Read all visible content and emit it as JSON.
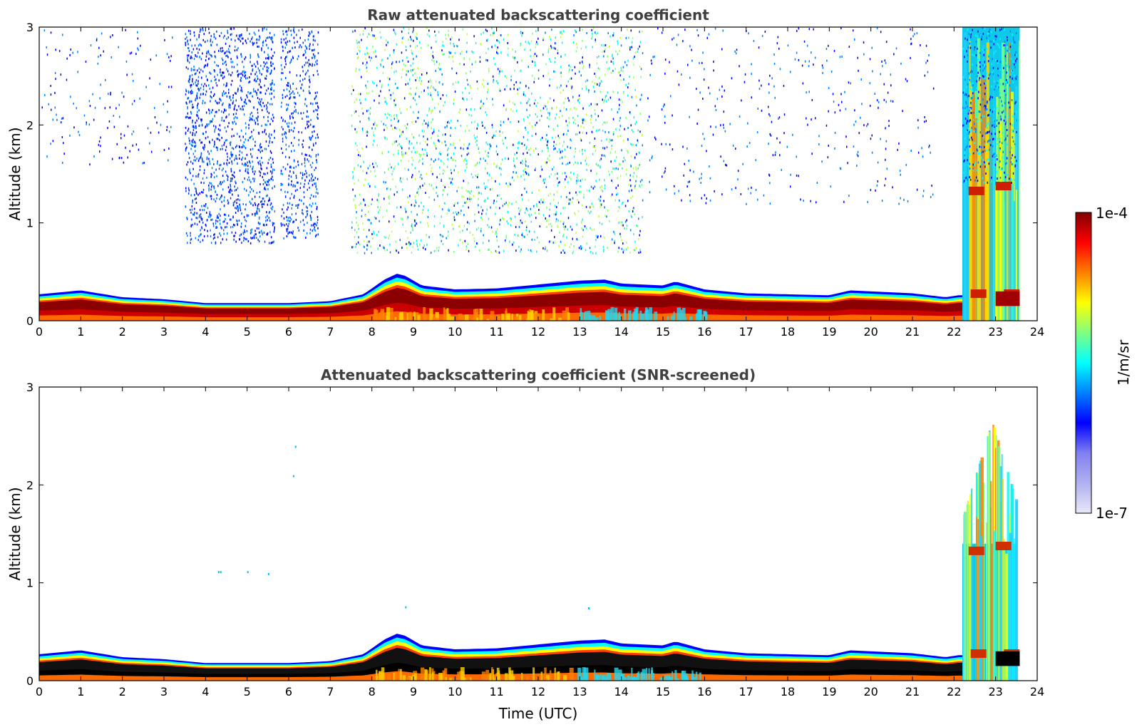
{
  "chart_data": [
    {
      "type": "heatmap",
      "title": "Raw attenuated backscattering coefficient",
      "xlabel": "",
      "ylabel": "Altitude (km)",
      "xlim": [
        0,
        24
      ],
      "ylim": [
        0,
        3
      ],
      "xticks": [
        "0",
        "1",
        "2",
        "3",
        "4",
        "5",
        "6",
        "7",
        "8",
        "9",
        "10",
        "11",
        "12",
        "13",
        "14",
        "15",
        "16",
        "17",
        "18",
        "19",
        "20",
        "21",
        "22",
        "23",
        "24"
      ],
      "yticks": [
        "0",
        "1",
        "2",
        "3"
      ],
      "features": [
        {
          "name": "aerosol layer top (km) vs time (UTC)",
          "x": [
            0,
            1,
            2,
            3,
            4,
            5,
            6,
            7,
            7.8,
            8.3,
            8.6,
            8.8,
            9.2,
            10,
            11,
            12,
            13,
            13.6,
            14,
            15,
            15.3,
            16,
            17,
            18,
            19,
            19.5,
            20,
            21,
            21.8,
            22.1
          ],
          "y": [
            0.27,
            0.31,
            0.24,
            0.22,
            0.18,
            0.18,
            0.18,
            0.2,
            0.27,
            0.42,
            0.48,
            0.46,
            0.36,
            0.32,
            0.33,
            0.37,
            0.41,
            0.42,
            0.38,
            0.36,
            0.4,
            0.32,
            0.28,
            0.27,
            0.26,
            0.31,
            0.3,
            0.28,
            0.24,
            0.26
          ]
        },
        {
          "name": "dense cloud",
          "x_range": [
            22.2,
            23.6
          ],
          "y_range": [
            0,
            3
          ]
        },
        {
          "name": "sparse noise",
          "x_range": [
            0,
            24
          ],
          "y_range": [
            0.7,
            3
          ]
        }
      ]
    },
    {
      "type": "heatmap",
      "title": "Attenuated backscattering coefficient (SNR-screened)",
      "xlabel": "Time (UTC)",
      "ylabel": "Altitude (km)",
      "xlim": [
        0,
        24
      ],
      "ylim": [
        0,
        3
      ],
      "xticks": [
        "0",
        "1",
        "2",
        "3",
        "4",
        "5",
        "6",
        "7",
        "8",
        "9",
        "10",
        "11",
        "12",
        "13",
        "14",
        "15",
        "16",
        "17",
        "18",
        "19",
        "20",
        "21",
        "22",
        "23",
        "24"
      ],
      "yticks": [
        "0",
        "1",
        "2",
        "3"
      ],
      "features": [
        {
          "name": "aerosol layer top (km) vs time (UTC)",
          "x": [
            0,
            1,
            2,
            3,
            4,
            5,
            6,
            7,
            7.8,
            8.3,
            8.6,
            8.8,
            9.2,
            10,
            11,
            12,
            13,
            13.6,
            14,
            15,
            15.3,
            16,
            17,
            18,
            19,
            19.5,
            20,
            21,
            21.8,
            22.1
          ],
          "y": [
            0.27,
            0.31,
            0.24,
            0.22,
            0.18,
            0.18,
            0.18,
            0.2,
            0.27,
            0.42,
            0.48,
            0.46,
            0.36,
            0.32,
            0.33,
            0.37,
            0.41,
            0.42,
            0.38,
            0.36,
            0.4,
            0.32,
            0.28,
            0.27,
            0.26,
            0.31,
            0.3,
            0.28,
            0.24,
            0.26
          ]
        },
        {
          "name": "cloud column",
          "x_range": [
            22.2,
            23.5
          ],
          "y_range": [
            0,
            2.65
          ]
        }
      ]
    }
  ],
  "colorbar": {
    "max_label": "1e-4",
    "min_label": "1e-7",
    "unit_label": "1/m/sr",
    "colors": [
      "#e8e8f8",
      "#b0b0f0",
      "#8080f0",
      "#0000ff",
      "#0080ff",
      "#00ffff",
      "#80ff80",
      "#ffff00",
      "#ff8000",
      "#ff0000",
      "#800000"
    ]
  }
}
